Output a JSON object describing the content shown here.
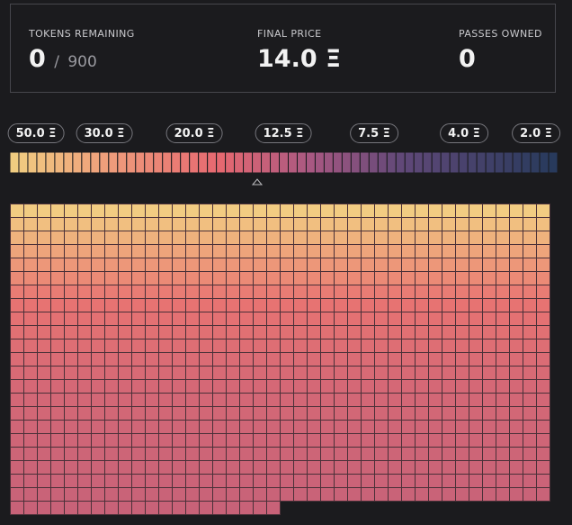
{
  "stats": [
    {
      "label": "TOKENS REMAINING",
      "value": "0",
      "separator": "/",
      "total": "900"
    },
    {
      "label": "FINAL PRICE",
      "value": "14.0 Ξ"
    },
    {
      "label": "PASSES OWNED",
      "value": "0"
    }
  ],
  "price_steps": [
    "50.0 Ξ",
    "30.0 Ξ",
    "20.0 Ξ",
    "12.5 Ξ",
    "7.5 Ξ",
    "4.0 Ξ",
    "2.0 Ξ"
  ]
}
